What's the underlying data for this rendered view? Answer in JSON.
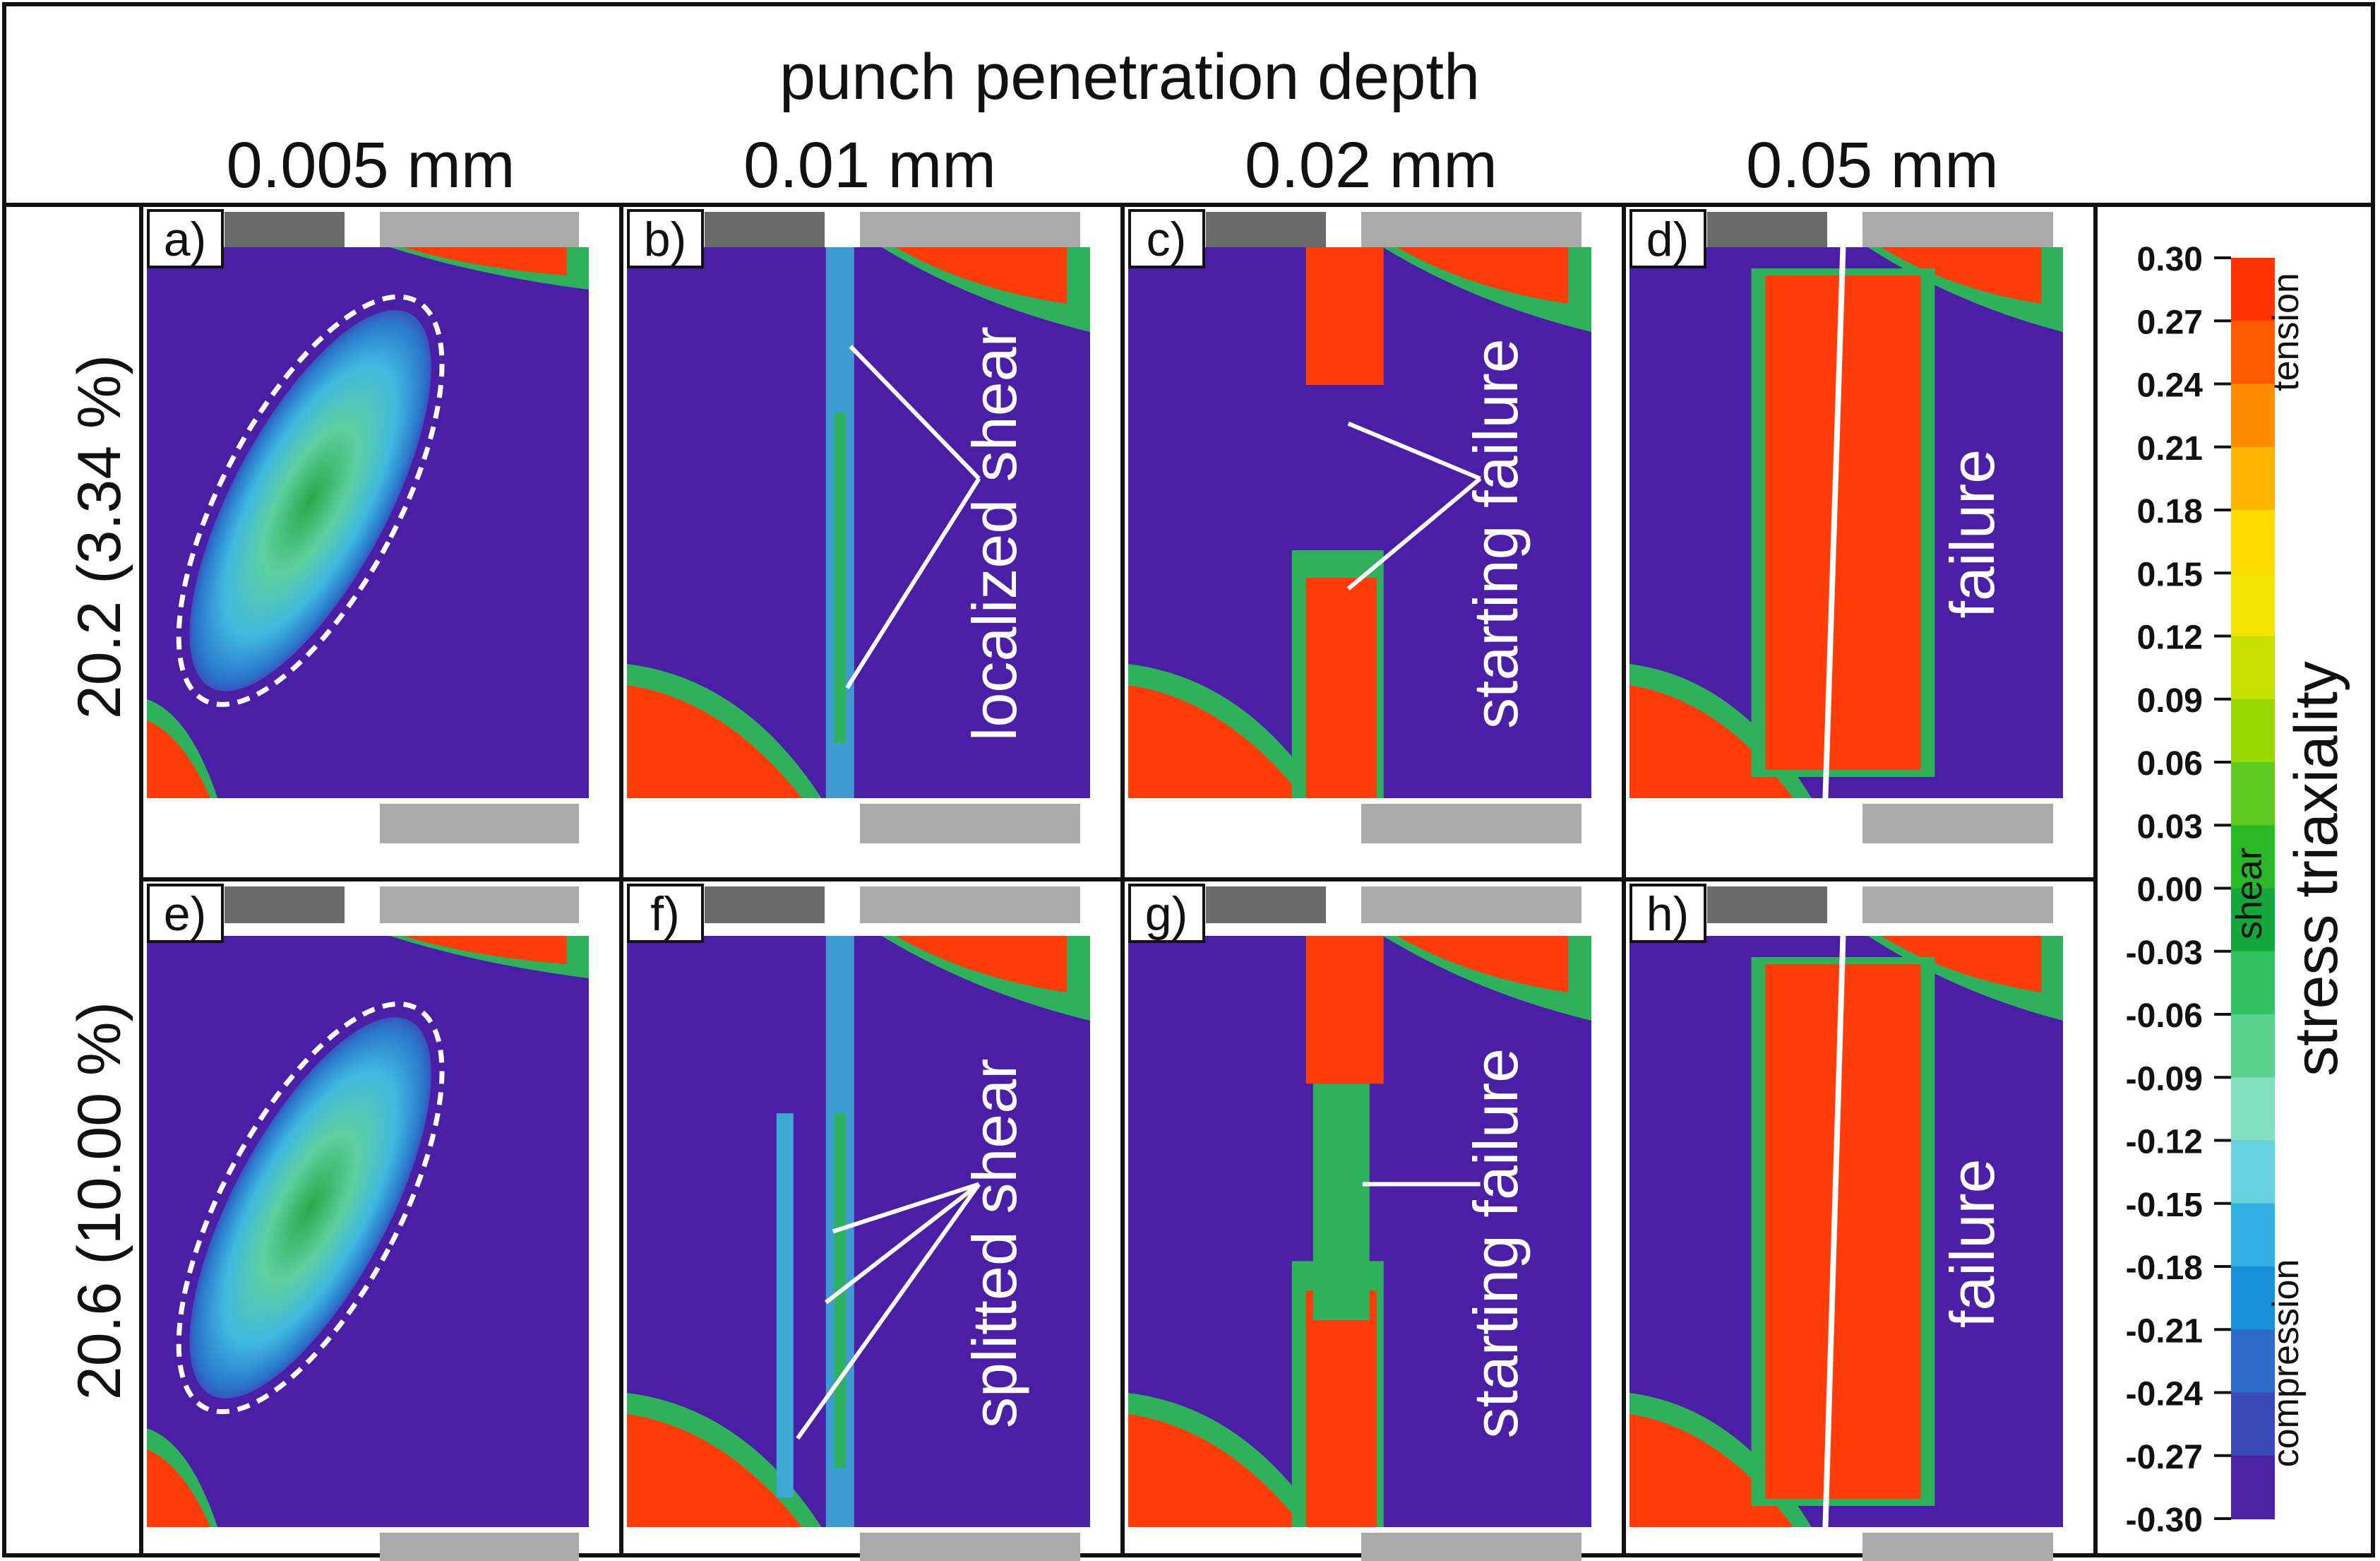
{
  "header": {
    "title": "punch penetration depth",
    "depths": [
      "0.005 mm",
      "0.01 mm",
      "0.02 mm",
      "0.05 mm"
    ]
  },
  "rows": [
    {
      "label": "20.2 (3.34 %)"
    },
    {
      "label": "20.6 (10.00 %)"
    }
  ],
  "panels": [
    {
      "letter": "a)",
      "annotation": ""
    },
    {
      "letter": "b)",
      "annotation": "localized shear"
    },
    {
      "letter": "c)",
      "annotation": "starting failure"
    },
    {
      "letter": "d)",
      "annotation": "failure"
    },
    {
      "letter": "e)",
      "annotation": ""
    },
    {
      "letter": "f)",
      "annotation": "splitted shear"
    },
    {
      "letter": "g)",
      "annotation": "starting failure"
    },
    {
      "letter": "h)",
      "annotation": "failure"
    }
  ],
  "colorbar": {
    "title": "stress triaxiality",
    "ticks": [
      "0.30",
      "0.27",
      "0.24",
      "0.21",
      "0.18",
      "0.15",
      "0.12",
      "0.09",
      "0.06",
      "0.03",
      "0.00",
      "-0.03",
      "-0.06",
      "-0.09",
      "-0.12",
      "-0.15",
      "-0.18",
      "-0.21",
      "-0.24",
      "-0.27",
      "-0.30"
    ],
    "labels": {
      "tension": "tension",
      "shear": "shear",
      "compression": "compression"
    },
    "colors": [
      "#ff3300",
      "#ff5a00",
      "#ff8c00",
      "#ffb400",
      "#ffdc00",
      "#f2e400",
      "#c8e000",
      "#96d800",
      "#5ccb1e",
      "#28b828",
      "#14a83c",
      "#32c060",
      "#5ad28c",
      "#80e0c0",
      "#66d0e0",
      "#30b0e0",
      "#1690d8",
      "#2a6cc8",
      "#3a48b8",
      "#4b22a6"
    ]
  },
  "colors": {
    "field": "#4b1fa5",
    "tension": "#ff3c0a",
    "die_dark": "#6a6a6a",
    "die_light": "#aaaaaa"
  }
}
